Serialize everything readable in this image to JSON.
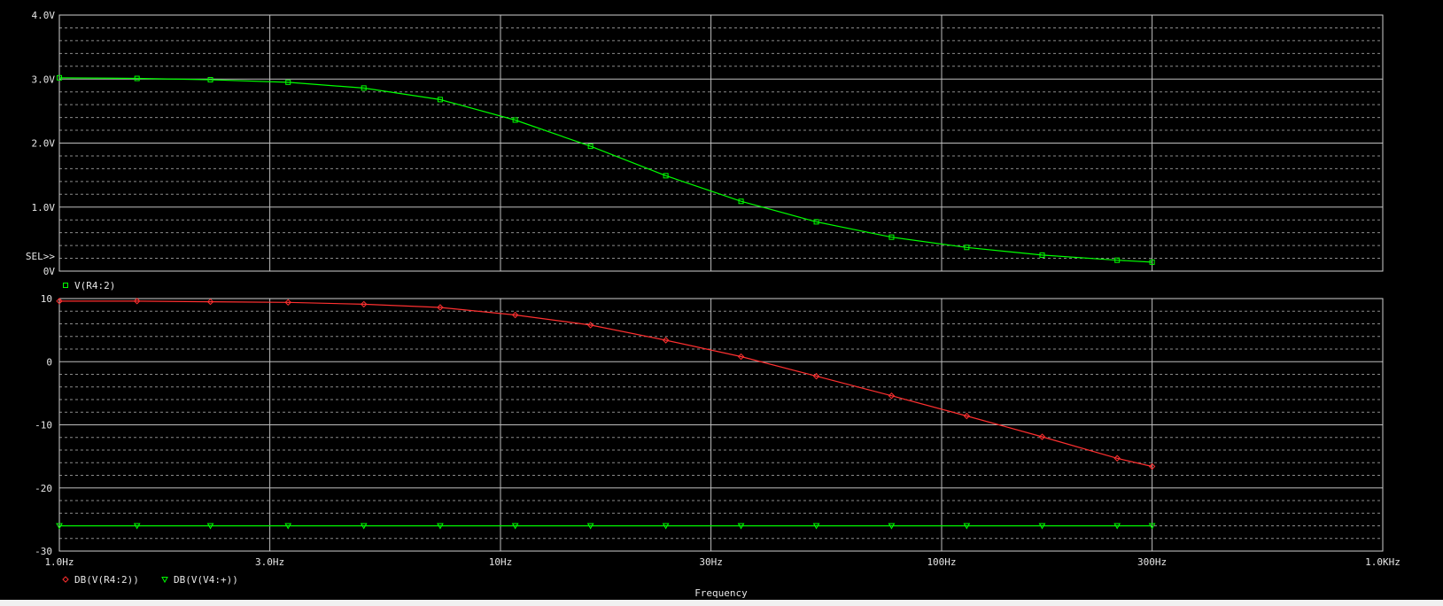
{
  "chart_data": [
    {
      "type": "line",
      "panel": "top",
      "x_scale": "log",
      "xlim": [
        1,
        1000
      ],
      "ylim": [
        0,
        4
      ],
      "grid": true,
      "y_ticks": [
        "4.0V",
        "3.0V",
        "2.0V",
        "1.0V",
        "0V"
      ],
      "y_tick_values": [
        4,
        3,
        2,
        1,
        0
      ],
      "selection_marker": "SEL>>",
      "series": [
        {
          "name": "V(R4:2)",
          "marker": "square",
          "color": "#00ff00",
          "x": [
            1.0,
            1.5,
            2.2,
            3.3,
            4.9,
            7.3,
            10.8,
            16,
            23.7,
            35.1,
            52,
            77,
            114,
            169,
            250,
            300
          ],
          "values": [
            3.02,
            3.01,
            2.99,
            2.95,
            2.86,
            2.68,
            2.36,
            1.95,
            1.49,
            1.09,
            0.77,
            0.53,
            0.37,
            0.25,
            0.17,
            0.14
          ]
        }
      ]
    },
    {
      "type": "line",
      "panel": "bottom",
      "x_scale": "log",
      "xlim": [
        1,
        1000
      ],
      "ylim": [
        -30,
        10
      ],
      "grid": true,
      "y_ticks": [
        "10",
        "0",
        "-10",
        "-20",
        "-30"
      ],
      "y_tick_values": [
        10,
        0,
        -10,
        -20,
        -30
      ],
      "x_ticks": [
        "1.0Hz",
        "3.0Hz",
        "10Hz",
        "30Hz",
        "100Hz",
        "300Hz",
        "1.0KHz"
      ],
      "x_tick_values": [
        1,
        3,
        10,
        30,
        100,
        300,
        1000
      ],
      "xlabel": "Frequency",
      "series": [
        {
          "name": "DB(V(R4:2))",
          "marker": "diamond",
          "color": "#ff3030",
          "x": [
            1.0,
            1.5,
            2.2,
            3.3,
            4.9,
            7.3,
            10.8,
            16,
            23.7,
            35.1,
            52,
            77,
            114,
            169,
            250,
            300
          ],
          "values": [
            9.6,
            9.6,
            9.5,
            9.4,
            9.1,
            8.6,
            7.4,
            5.8,
            3.4,
            0.8,
            -2.3,
            -5.4,
            -8.6,
            -11.9,
            -15.3,
            -16.6
          ]
        },
        {
          "name": "DB(V(V4:+))",
          "marker": "triangle-down",
          "color": "#00ff00",
          "x": [
            1.0,
            1.5,
            2.2,
            3.3,
            4.9,
            7.3,
            10.8,
            16,
            23.7,
            35.1,
            52,
            77,
            114,
            169,
            250,
            300
          ],
          "values": [
            -26,
            -26,
            -26,
            -26,
            -26,
            -26,
            -26,
            -26,
            -26,
            -26,
            -26,
            -26,
            -26,
            -26,
            -26,
            -26
          ]
        }
      ]
    }
  ]
}
